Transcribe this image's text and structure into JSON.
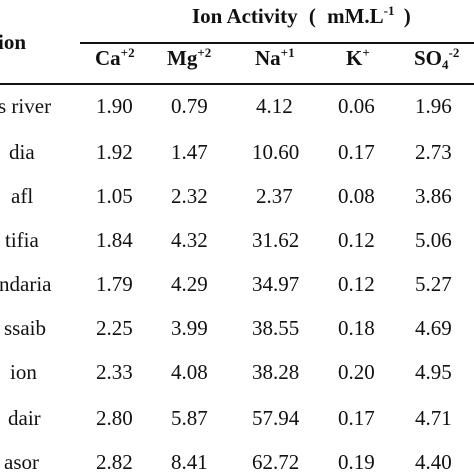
{
  "table": {
    "header": {
      "station_label": "ion",
      "group_title_main": "Ion Activity",
      "group_title_paren_open": "(",
      "group_title_unit": "mM.L",
      "group_title_unit_sup": "-1",
      "group_title_paren_close": ")",
      "columns": [
        {
          "base": "Ca",
          "sup": "+2",
          "sub": ""
        },
        {
          "base": "Mg",
          "sup": "+2",
          "sub": ""
        },
        {
          "base": "Na",
          "sup": "+1",
          "sub": ""
        },
        {
          "base": "K",
          "sup": "+",
          "sub": ""
        },
        {
          "base": "SO",
          "sup": "-2",
          "sub": "4"
        }
      ]
    },
    "rows": [
      {
        "station": "s river",
        "values": [
          "1.90",
          "0.79",
          "4.12",
          "0.06",
          "1.96"
        ]
      },
      {
        "station": "dia",
        "values": [
          "1.92",
          "1.47",
          "10.60",
          "0.17",
          "2.73"
        ]
      },
      {
        "station": "afl",
        "values": [
          "1.05",
          "2.32",
          "2.37",
          "0.08",
          "3.86"
        ]
      },
      {
        "station": "tifia",
        "values": [
          "1.84",
          "4.32",
          "31.62",
          "0.12",
          "5.06"
        ]
      },
      {
        "station": "ndaria",
        "values": [
          "1.79",
          "4.29",
          "34.97",
          "0.12",
          "5.27"
        ]
      },
      {
        "station": "ssaib",
        "values": [
          "2.25",
          "3.99",
          "38.55",
          "0.18",
          "4.69"
        ]
      },
      {
        "station": "ion",
        "values": [
          "2.33",
          "4.08",
          "38.28",
          "0.20",
          "4.95"
        ]
      },
      {
        "station": "dair",
        "values": [
          "2.80",
          "5.87",
          "57.94",
          "0.17",
          "4.71"
        ]
      },
      {
        "station": "asor",
        "values": [
          "2.82",
          "8.41",
          "62.72",
          "0.19",
          "4.40"
        ]
      }
    ]
  }
}
